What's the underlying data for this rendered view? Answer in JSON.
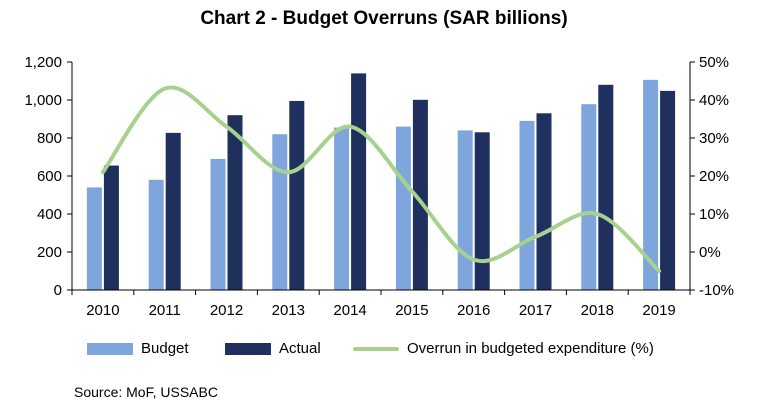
{
  "chart_data": {
    "type": "bar",
    "title": "Chart 2 - Budget Overruns (SAR billions)",
    "categories": [
      "2010",
      "2011",
      "2012",
      "2013",
      "2014",
      "2015",
      "2016",
      "2017",
      "2018",
      "2019"
    ],
    "series": [
      {
        "name": "Budget",
        "type": "bar",
        "axis": "left",
        "color": "#7ea6dc",
        "values": [
          540,
          580,
          690,
          820,
          855,
          860,
          840,
          890,
          978,
          1106
        ]
      },
      {
        "name": "Actual",
        "type": "bar",
        "axis": "left",
        "color": "#1f2f5e",
        "values": [
          655,
          827,
          920,
          995,
          1140,
          1001,
          830,
          930,
          1080,
          1048
        ]
      },
      {
        "name": "Overrun in budgeted expenditure (%)",
        "type": "line",
        "axis": "right",
        "color": "#a9d18e",
        "values": [
          21,
          43,
          33,
          21,
          33,
          16,
          -2,
          4,
          10,
          -5
        ]
      }
    ],
    "y_left": {
      "min": 0,
      "max": 1200,
      "step": 200,
      "tick_labels": [
        "0",
        "200",
        "400",
        "600",
        "800",
        "1,000",
        "1,200"
      ]
    },
    "y_right": {
      "min": -10,
      "max": 50,
      "step": 10,
      "tick_labels": [
        "-10%",
        "0%",
        "10%",
        "20%",
        "30%",
        "40%",
        "50%"
      ]
    },
    "legend": [
      "Budget",
      "Actual",
      "Overrun in budgeted expenditure (%)"
    ],
    "legend_position": "bottom"
  },
  "source": "Source: MoF, USSABC"
}
